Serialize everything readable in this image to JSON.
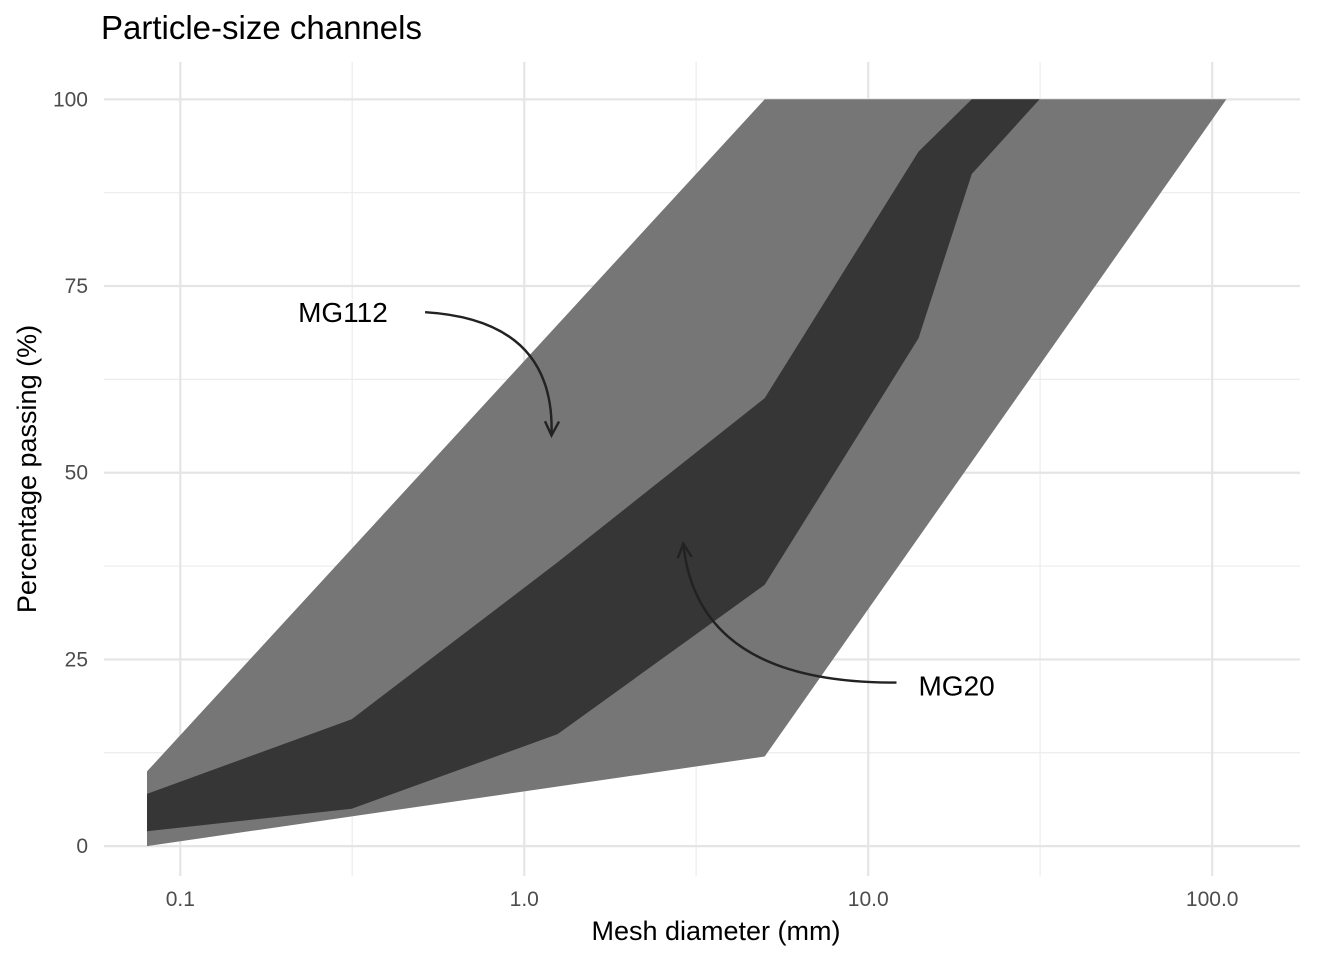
{
  "chart_data": {
    "type": "area",
    "title": "Particle-size channels",
    "xlabel": "Mesh diameter (mm)",
    "ylabel": "Percentage passing (%)",
    "x_scale": "log10",
    "xlim": [
      0.06,
      180
    ],
    "ylim": [
      -4,
      105
    ],
    "x_ticks": [
      0.1,
      1,
      10,
      100
    ],
    "x_tick_labels": [
      "0.1",
      "1.0",
      "10.0",
      "100.0"
    ],
    "x_minor_ticks": [
      0.316,
      3.16,
      31.6
    ],
    "y_ticks": [
      0,
      25,
      50,
      75,
      100
    ],
    "y_tick_labels": [
      "0",
      "25",
      "50",
      "75",
      "100"
    ],
    "y_minor_ticks": [
      12.5,
      37.5,
      62.5,
      87.5
    ],
    "grid": true,
    "legend": "none",
    "series": [
      {
        "name": "MG112",
        "color": "#767676",
        "upper": [
          {
            "x": 0.08,
            "y": 10
          },
          {
            "x": 5,
            "y": 100
          },
          {
            "x": 110,
            "y": 100
          }
        ],
        "lower": [
          {
            "x": 0.08,
            "y": 0
          },
          {
            "x": 5,
            "y": 12
          },
          {
            "x": 110,
            "y": 100
          }
        ]
      },
      {
        "name": "MG20",
        "color": "#363636",
        "upper": [
          {
            "x": 0.08,
            "y": 7
          },
          {
            "x": 0.315,
            "y": 17
          },
          {
            "x": 1.25,
            "y": 38
          },
          {
            "x": 5,
            "y": 60
          },
          {
            "x": 14,
            "y": 93
          },
          {
            "x": 20,
            "y": 100
          },
          {
            "x": 31.5,
            "y": 100
          }
        ],
        "lower": [
          {
            "x": 0.08,
            "y": 2
          },
          {
            "x": 0.315,
            "y": 5
          },
          {
            "x": 1.25,
            "y": 15
          },
          {
            "x": 5,
            "y": 35
          },
          {
            "x": 14,
            "y": 68
          },
          {
            "x": 20,
            "y": 90
          },
          {
            "x": 31.5,
            "y": 100
          }
        ]
      }
    ],
    "annotations": [
      {
        "text": "MG112",
        "x": 0.22,
        "y": 71.5,
        "arrow_to": {
          "x": 1.2,
          "y": 55
        }
      },
      {
        "text": "MG20",
        "x": 14,
        "y": 21.5,
        "arrow_to": {
          "x": 2.9,
          "y": 40.5
        }
      }
    ]
  }
}
